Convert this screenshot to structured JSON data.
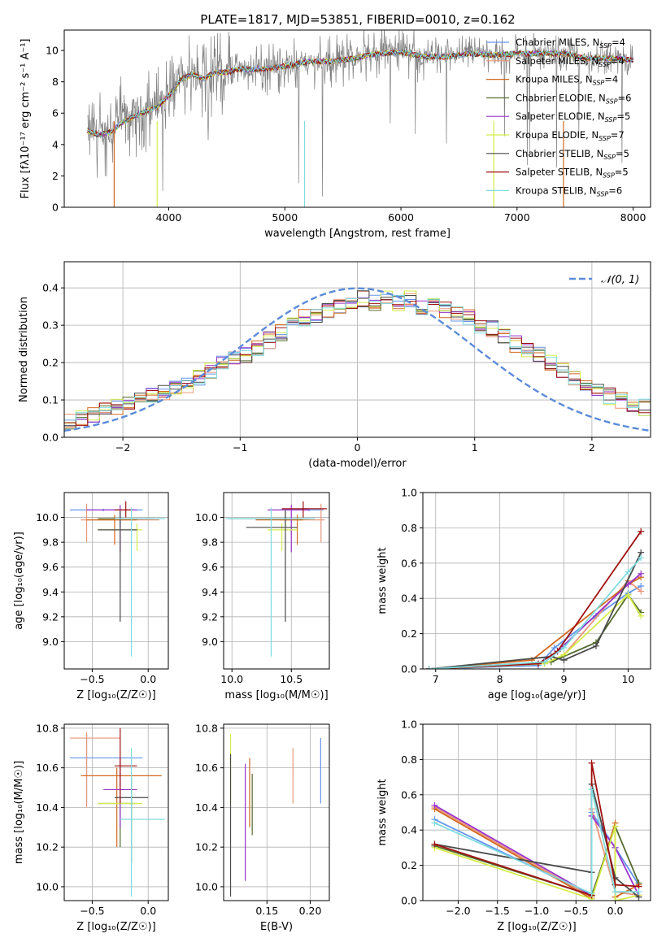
{
  "figure": {
    "title": "PLATE=1817, MJD=53851, FIBERID=0010, z=0.162"
  },
  "chart_data": [
    {
      "id": "spectrum",
      "type": "line",
      "xlabel": "wavelength [Angstrom, rest frame]",
      "ylabel": "Flux [fλ10⁻¹⁷ erg cm⁻² s⁻¹ A⁻¹]",
      "xlim": [
        3100,
        8150
      ],
      "ylim": [
        0,
        11.3
      ],
      "xticks": [
        4000,
        5000,
        6000,
        7000,
        8000
      ],
      "yticks": [
        0,
        2,
        4,
        6,
        8,
        10
      ],
      "legend_position": "right",
      "observed": {
        "color": "#808080",
        "x": [
          3300,
          3400,
          3500,
          3600,
          3700,
          3800,
          3900,
          4000,
          4100,
          4200,
          4300,
          4400,
          4500,
          4600,
          4700,
          4800,
          4900,
          5000,
          5200,
          5400,
          5600,
          5800,
          6000,
          6200,
          6400,
          6600,
          6800,
          7000,
          7200,
          7400,
          7600,
          7800,
          8000
        ],
        "y": [
          4.9,
          4.7,
          4.9,
          5.7,
          6.0,
          6.3,
          6.6,
          7.3,
          8.3,
          8.6,
          8.1,
          8.7,
          8.6,
          8.9,
          8.9,
          8.9,
          8.9,
          9.0,
          9.3,
          9.3,
          9.6,
          9.9,
          10.1,
          9.6,
          9.6,
          9.9,
          9.6,
          9.8,
          9.9,
          9.8,
          9.4,
          9.5,
          9.3
        ]
      },
      "series": [
        {
          "name": "Chabrier MILES, NSSP=4",
          "label_main": "Chabrier MILES, N",
          "label_sub": "SSP",
          "label_tail": "=4",
          "color": "#6495ed"
        },
        {
          "name": "Salpeter MILES, NSSP=4",
          "label_main": "Salpeter MILES, N",
          "label_sub": "SSP",
          "label_tail": "=4",
          "color": "#e9967a"
        },
        {
          "name": "Kroupa MILES, NSSP=4",
          "label_main": "Kroupa MILES, N",
          "label_sub": "SSP",
          "label_tail": "=4",
          "color": "#d2691e"
        },
        {
          "name": "Chabrier ELODIE, NSSP=6",
          "label_main": "Chabrier ELODIE, N",
          "label_sub": "SSP",
          "label_tail": "=6",
          "color": "#556b2f"
        },
        {
          "name": "Salpeter ELODIE, NSSP=5",
          "label_main": "Salpeter ELODIE, N",
          "label_sub": "SSP",
          "label_tail": "=5",
          "color": "#9932cc"
        },
        {
          "name": "Kroupa ELODIE, NSSP=7",
          "label_main": "Kroupa ELODIE, N",
          "label_sub": "SSP",
          "label_tail": "=7",
          "color": "#d4ed4a"
        },
        {
          "name": "Chabrier STELIB, NSSP=5",
          "label_main": "Chabrier STELIB, N",
          "label_sub": "SSP",
          "label_tail": "=5",
          "color": "#4a4a4a"
        },
        {
          "name": "Salpeter STELIB, NSSP=5",
          "label_main": "Salpeter STELIB, N",
          "label_sub": "SSP",
          "label_tail": "=5",
          "color": "#a01010"
        },
        {
          "name": "Kroupa STELIB, NSSP=6",
          "label_main": "Kroupa STELIB, N",
          "label_sub": "SSP",
          "label_tail": "=6",
          "color": "#7fdce0"
        }
      ],
      "model_curve": {
        "x": [
          3300,
          3400,
          3500,
          3600,
          3700,
          3800,
          3900,
          4000,
          4100,
          4200,
          4300,
          4400,
          4500,
          4600,
          4700,
          4800,
          4900,
          5000,
          5200,
          5400,
          5600,
          5800,
          6000,
          6200,
          6400,
          6600,
          6800,
          7000,
          7200,
          7400,
          7600,
          7800,
          8000
        ],
        "y": [
          4.9,
          4.6,
          4.8,
          5.4,
          5.8,
          6.1,
          6.4,
          7.1,
          8.1,
          8.5,
          8.2,
          8.6,
          8.6,
          8.8,
          8.8,
          8.8,
          8.9,
          9.0,
          9.3,
          9.3,
          9.5,
          9.8,
          9.9,
          9.6,
          9.6,
          9.8,
          9.7,
          9.8,
          9.8,
          9.8,
          9.5,
          9.5,
          9.4
        ]
      }
    },
    {
      "id": "residuals",
      "type": "histogram",
      "xlabel": "(data-model)/error",
      "ylabel": "Normed distribution",
      "xlim": [
        -2.5,
        2.5
      ],
      "ylim": [
        0,
        0.47
      ],
      "xticks": [
        -2,
        -1,
        0,
        1,
        2
      ],
      "yticks": [
        0.0,
        0.1,
        0.2,
        0.3,
        0.4
      ],
      "legend": {
        "label": "𝒩(0, 1)",
        "position": "top-right"
      },
      "gaussian": {
        "mean": 0,
        "sigma": 1,
        "color": "#5b8bd9"
      },
      "bin_width": 0.1,
      "bin_start": -2.5,
      "base_values": [
        0.04,
        0.05,
        0.06,
        0.07,
        0.08,
        0.09,
        0.1,
        0.11,
        0.12,
        0.13,
        0.14,
        0.16,
        0.18,
        0.2,
        0.21,
        0.22,
        0.24,
        0.26,
        0.28,
        0.3,
        0.32,
        0.33,
        0.34,
        0.35,
        0.36,
        0.37,
        0.36,
        0.37,
        0.36,
        0.37,
        0.35,
        0.36,
        0.34,
        0.33,
        0.32,
        0.3,
        0.29,
        0.27,
        0.25,
        0.23,
        0.22,
        0.2,
        0.18,
        0.16,
        0.14,
        0.12,
        0.11,
        0.1,
        0.09,
        0.08
      ]
    },
    {
      "id": "age-vs-Z",
      "type": "errorbar",
      "xlabel": "Z [log₁₀(Z/Z☉)]",
      "ylabel": "age [log₁₀(age/yr)]",
      "xlim": [
        -0.75,
        0.18
      ],
      "ylim": [
        8.78,
        10.2
      ],
      "xticks": [
        -0.5,
        0.0
      ],
      "yticks": [
        9.0,
        9.2,
        9.4,
        9.6,
        9.8,
        10.0
      ],
      "points": [
        {
          "x": -0.4,
          "y": 10.06,
          "xlo": -0.7,
          "xhi": -0.05,
          "ylo": 10.05,
          "yhi": 10.07
        },
        {
          "x": -0.55,
          "y": 9.98,
          "xlo": -0.6,
          "xhi": 0.1,
          "ylo": 9.8,
          "yhi": 10.11
        },
        {
          "x": -0.3,
          "y": 9.98,
          "xlo": -0.55,
          "xhi": -0.1,
          "ylo": 9.78,
          "yhi": 10.02
        },
        {
          "x": -0.25,
          "y": 9.99,
          "xlo": -0.45,
          "xhi": 0.05,
          "ylo": 9.93,
          "yhi": 10.06
        },
        {
          "x": -0.25,
          "y": 10.06,
          "xlo": -0.55,
          "xhi": -0.1,
          "ylo": 9.72,
          "yhi": 10.1
        },
        {
          "x": -0.1,
          "y": 9.9,
          "xlo": -0.45,
          "xhi": -0.05,
          "ylo": 9.73,
          "yhi": 9.95
        },
        {
          "x": -0.25,
          "y": 9.9,
          "xlo": -0.45,
          "xhi": -0.1,
          "ylo": 9.16,
          "yhi": 10.05
        },
        {
          "x": -0.2,
          "y": 10.06,
          "xlo": -0.3,
          "xhi": -0.15,
          "ylo": 10.0,
          "yhi": 10.13
        },
        {
          "x": -0.15,
          "y": 9.99,
          "xlo": -0.3,
          "xhi": 0.15,
          "ylo": 8.88,
          "yhi": 10.08
        }
      ]
    },
    {
      "id": "age-vs-mass",
      "type": "errorbar",
      "xlabel": "mass [log₁₀(M/M☉)]",
      "ylabel": "",
      "xlim": [
        9.93,
        10.82
      ],
      "ylim": [
        8.78,
        10.2
      ],
      "xticks": [
        10.0,
        10.5
      ],
      "yticks": [
        9.0,
        9.2,
        9.4,
        9.6,
        9.8,
        10.0
      ],
      "points": [
        {
          "x": 10.65,
          "y": 10.06,
          "xlo": 10.42,
          "xhi": 10.77,
          "ylo": 10.05,
          "yhi": 10.07
        },
        {
          "x": 10.75,
          "y": 9.98,
          "xlo": 10.4,
          "xhi": 10.78,
          "ylo": 9.8,
          "yhi": 10.11
        },
        {
          "x": 10.55,
          "y": 9.98,
          "xlo": 10.2,
          "xhi": 10.6,
          "ylo": 9.78,
          "yhi": 10.02
        },
        {
          "x": 10.45,
          "y": 9.99,
          "xlo": 9.98,
          "xhi": 10.65,
          "ylo": 9.93,
          "yhi": 10.06
        },
        {
          "x": 10.5,
          "y": 10.06,
          "xlo": 10.3,
          "xhi": 10.65,
          "ylo": 9.72,
          "yhi": 10.1
        },
        {
          "x": 10.42,
          "y": 9.9,
          "xlo": 10.3,
          "xhi": 10.55,
          "ylo": 9.73,
          "yhi": 9.95
        },
        {
          "x": 10.45,
          "y": 9.92,
          "xlo": 10.12,
          "xhi": 10.55,
          "ylo": 9.16,
          "yhi": 10.05
        },
        {
          "x": 10.6,
          "y": 10.07,
          "xlo": 10.42,
          "xhi": 10.8,
          "ylo": 10.0,
          "yhi": 10.13
        },
        {
          "x": 10.33,
          "y": 9.99,
          "xlo": 9.95,
          "xhi": 10.7,
          "ylo": 8.88,
          "yhi": 10.08
        }
      ]
    },
    {
      "id": "mass-weight-vs-age",
      "type": "line",
      "xlabel": "age [log₁₀(age/yr)]",
      "ylabel": "mass weight",
      "xlim": [
        6.8,
        10.35
      ],
      "ylim": [
        0,
        1.0
      ],
      "xticks": [
        7,
        8,
        9,
        10
      ],
      "yticks": [
        0.0,
        0.2,
        0.4,
        0.6,
        0.8,
        1.0
      ],
      "lines": [
        {
          "x": [
            6.9,
            8.6,
            8.85,
            9.5,
            10.0,
            10.2
          ],
          "y": [
            0.0,
            0.02,
            0.12,
            0.3,
            0.43,
            0.47
          ]
        },
        {
          "x": [
            6.9,
            8.7,
            9.0,
            10.0,
            10.2
          ],
          "y": [
            0.0,
            0.03,
            0.08,
            0.5,
            0.44
          ]
        },
        {
          "x": [
            6.9,
            8.5,
            10.0,
            10.2
          ],
          "y": [
            0.0,
            0.05,
            0.48,
            0.52
          ]
        },
        {
          "x": [
            6.9,
            8.8,
            9.5,
            10.0,
            10.2
          ],
          "y": [
            0.0,
            0.04,
            0.15,
            0.42,
            0.32
          ]
        },
        {
          "x": [
            6.9,
            8.6,
            8.9,
            10.0,
            10.2
          ],
          "y": [
            0.0,
            0.03,
            0.1,
            0.48,
            0.54
          ]
        },
        {
          "x": [
            6.9,
            8.7,
            9.0,
            10.0,
            10.2
          ],
          "y": [
            0.0,
            0.03,
            0.08,
            0.42,
            0.3
          ]
        },
        {
          "x": [
            6.9,
            8.8,
            9.0,
            9.5,
            10.2
          ],
          "y": [
            0.0,
            0.07,
            0.05,
            0.13,
            0.66
          ]
        },
        {
          "x": [
            6.9,
            8.6,
            8.9,
            10.2
          ],
          "y": [
            0.0,
            0.03,
            0.1,
            0.78
          ]
        },
        {
          "x": [
            6.9,
            8.7,
            9.0,
            10.0,
            10.2
          ],
          "y": [
            0.0,
            0.04,
            0.12,
            0.55,
            0.63
          ]
        }
      ]
    },
    {
      "id": "mass-vs-Z",
      "type": "errorbar",
      "xlabel": "Z [log₁₀(Z/Z☉)]",
      "ylabel": "mass [log₁₀(M/M☉)]",
      "xlim": [
        -0.75,
        0.18
      ],
      "ylim": [
        9.93,
        10.82
      ],
      "xticks": [
        -0.5,
        0.0
      ],
      "yticks": [
        10.0,
        10.2,
        10.4,
        10.6,
        10.8
      ],
      "points": [
        {
          "x": -0.55,
          "y": 10.65,
          "xlo": -0.7,
          "xhi": -0.05,
          "ylo": 10.42,
          "yhi": 10.77
        },
        {
          "x": -0.55,
          "y": 10.75,
          "xlo": -0.7,
          "xhi": -0.25,
          "ylo": 10.4,
          "yhi": 10.78
        },
        {
          "x": -0.28,
          "y": 10.56,
          "xlo": -0.6,
          "xhi": 0.12,
          "ylo": 10.2,
          "yhi": 10.6
        },
        {
          "x": -0.25,
          "y": 10.42,
          "xlo": -0.45,
          "xhi": -0.1,
          "ylo": 10.2,
          "yhi": 10.46
        },
        {
          "x": -0.25,
          "y": 10.49,
          "xlo": -0.4,
          "xhi": -0.1,
          "ylo": 10.3,
          "yhi": 10.65
        },
        {
          "x": -0.15,
          "y": 10.42,
          "xlo": -0.45,
          "xhi": -0.05,
          "ylo": 10.3,
          "yhi": 10.55
        },
        {
          "x": -0.15,
          "y": 10.45,
          "xlo": -0.3,
          "xhi": 0.0,
          "ylo": 10.12,
          "yhi": 10.55
        },
        {
          "x": -0.25,
          "y": 10.61,
          "xlo": -0.3,
          "xhi": -0.1,
          "ylo": 10.42,
          "yhi": 10.8
        },
        {
          "x": -0.15,
          "y": 10.34,
          "xlo": -0.25,
          "xhi": 0.15,
          "ylo": 9.95,
          "yhi": 10.7
        }
      ]
    },
    {
      "id": "mass-vs-EBV",
      "type": "errorbar",
      "xlabel": "E(B-V)",
      "ylabel": "",
      "xlim": [
        0.1,
        0.222
      ],
      "ylim": [
        9.93,
        10.82
      ],
      "xticks": [
        0.15,
        0.2
      ],
      "yticks": [
        10.0,
        10.2,
        10.4,
        10.6,
        10.8
      ],
      "points": [
        {
          "x": 0.212,
          "y": 10.6,
          "xlo": 0.212,
          "xhi": 0.212,
          "ylo": 10.42,
          "yhi": 10.75
        },
        {
          "x": 0.18,
          "y": 10.56,
          "xlo": 0.18,
          "xhi": 0.18,
          "ylo": 10.42,
          "yhi": 10.7
        },
        {
          "x": 0.13,
          "y": 10.5,
          "xlo": 0.13,
          "xhi": 0.13,
          "ylo": 10.3,
          "yhi": 10.65
        },
        {
          "x": 0.133,
          "y": 10.42,
          "xlo": 0.133,
          "xhi": 0.133,
          "ylo": 10.26,
          "yhi": 10.57
        },
        {
          "x": 0.125,
          "y": 10.35,
          "xlo": 0.125,
          "xhi": 0.125,
          "ylo": 10.03,
          "yhi": 10.62
        },
        {
          "x": 0.108,
          "y": 10.6,
          "xlo": 0.108,
          "xhi": 0.108,
          "ylo": 10.42,
          "yhi": 10.77
        },
        {
          "x": 0.108,
          "y": 10.34,
          "xlo": 0.108,
          "xhi": 0.108,
          "ylo": 9.95,
          "yhi": 10.67
        }
      ]
    },
    {
      "id": "mass-weight-vs-Z",
      "type": "line",
      "xlabel": "Z [log₁₀(Z/Z☉)]",
      "ylabel": "mass weight",
      "xlim": [
        -2.45,
        0.45
      ],
      "ylim": [
        0,
        1.0
      ],
      "xticks": [
        -2.0,
        -1.5,
        -1.0,
        -0.5,
        0.0
      ],
      "yticks": [
        0.0,
        0.2,
        0.4,
        0.6,
        0.8,
        1.0
      ],
      "lines": [
        {
          "x": [
            -2.3,
            -0.3,
            -0.3,
            0.0,
            0.3
          ],
          "y": [
            0.46,
            0.03,
            0.5,
            0.3,
            0.09
          ]
        },
        {
          "x": [
            -2.3,
            -0.3,
            -0.3,
            0.0,
            0.3
          ],
          "y": [
            0.53,
            0.02,
            0.52,
            0.05,
            0.03
          ]
        },
        {
          "x": [
            -2.3,
            -0.3,
            0.0,
            0.0,
            0.3
          ],
          "y": [
            0.52,
            0.01,
            0.44,
            0.02,
            0.09
          ]
        },
        {
          "x": [
            -2.3,
            -0.3,
            0.0,
            0.3
          ],
          "y": [
            0.31,
            0.03,
            0.42,
            0.1
          ]
        },
        {
          "x": [
            -2.3,
            -0.3,
            -0.3,
            0.0,
            0.3
          ],
          "y": [
            0.54,
            0.03,
            0.48,
            0.3,
            0.03
          ]
        },
        {
          "x": [
            -2.3,
            -0.3,
            0.0,
            0.0,
            0.3
          ],
          "y": [
            0.3,
            0.01,
            0.42,
            0.0,
            0.03
          ]
        },
        {
          "x": [
            -2.3,
            -0.3,
            -0.3,
            0.0,
            0.3
          ],
          "y": [
            0.32,
            0.16,
            0.66,
            0.13,
            0.02
          ]
        },
        {
          "x": [
            -2.3,
            -0.3,
            -0.3,
            0.0,
            0.3
          ],
          "y": [
            0.32,
            0.03,
            0.78,
            0.09,
            0.08
          ]
        },
        {
          "x": [
            -2.3,
            -0.3,
            -0.3,
            0.0,
            0.3
          ],
          "y": [
            0.44,
            0.04,
            0.63,
            0.05,
            0.05
          ]
        }
      ]
    }
  ]
}
